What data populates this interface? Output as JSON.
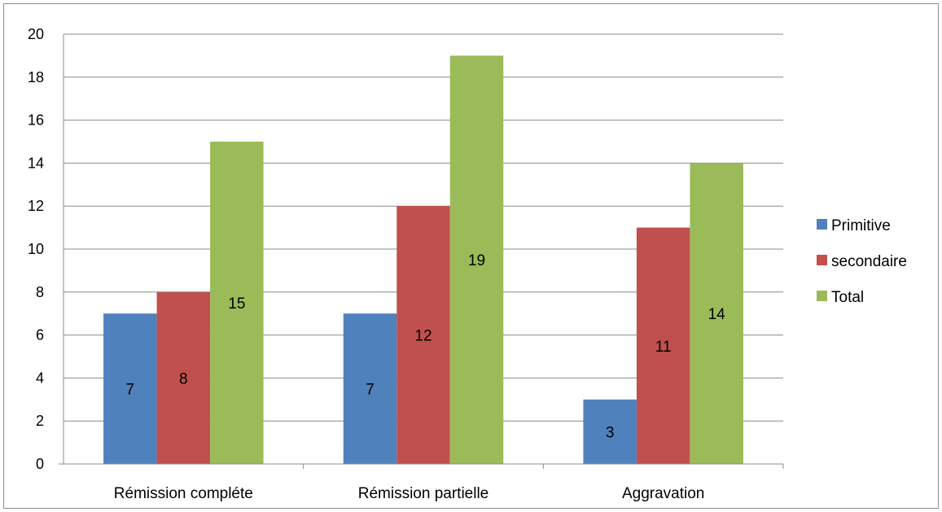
{
  "chart_data": {
    "type": "bar",
    "categories": [
      "Rémission compléte",
      "Rémission partielle",
      "Aggravation"
    ],
    "series": [
      {
        "name": "Primitive",
        "values": [
          7,
          7,
          3
        ],
        "color": "#4f81bd"
      },
      {
        "name": "secondaire",
        "values": [
          8,
          12,
          11
        ],
        "color": "#c0504d"
      },
      {
        "name": "Total",
        "values": [
          15,
          19,
          14
        ],
        "color": "#9bbb59"
      }
    ],
    "ylim": [
      0,
      20
    ],
    "yticks": [
      0,
      2,
      4,
      6,
      8,
      10,
      12,
      14,
      16,
      18,
      20
    ],
    "grid": true,
    "legend_position": "right",
    "data_labels": true
  }
}
